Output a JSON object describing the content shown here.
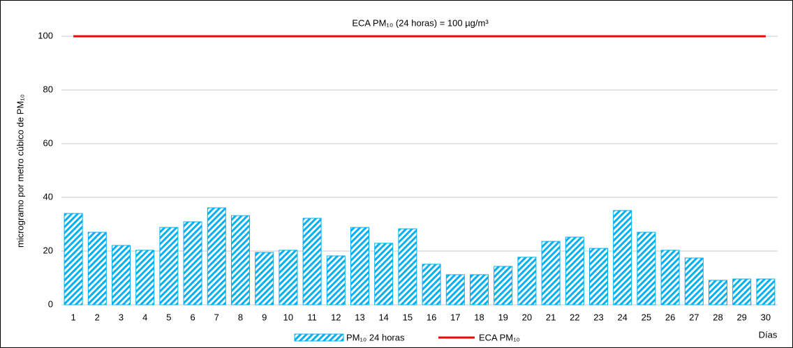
{
  "chart_data": {
    "type": "bar",
    "annotation": "ECA PM₁₀ (24 horas) = 100 µg/m³",
    "y_label": "microgramo por metro cúbico de PM₁₀",
    "x_label": "Días",
    "categories": [
      1,
      2,
      3,
      4,
      5,
      6,
      7,
      8,
      9,
      10,
      11,
      12,
      13,
      14,
      15,
      16,
      17,
      18,
      19,
      20,
      21,
      22,
      23,
      24,
      25,
      26,
      27,
      28,
      29,
      30
    ],
    "series": [
      {
        "name": "PM₁₀ 24 horas",
        "color": "#00b0f0",
        "type": "bar",
        "values": [
          34.0,
          27.0,
          22.1,
          20.3,
          28.8,
          30.9,
          36.1,
          33.2,
          19.5,
          20.3,
          32.2,
          18.2,
          28.8,
          22.9,
          28.3,
          15.1,
          11.2,
          11.2,
          14.3,
          17.7,
          23.6,
          25.2,
          21.0,
          35.1,
          27.0,
          20.3,
          17.4,
          9.1,
          9.6,
          9.6
        ]
      },
      {
        "name": "ECA PM₁₀",
        "color": "#ff0000",
        "type": "line",
        "values": [
          100,
          100,
          100,
          100,
          100,
          100,
          100,
          100,
          100,
          100,
          100,
          100,
          100,
          100,
          100,
          100,
          100,
          100,
          100,
          100,
          100,
          100,
          100,
          100,
          100,
          100,
          100,
          100,
          100,
          100
        ]
      }
    ],
    "ylim": [
      0,
      105
    ],
    "yticks": [
      0,
      20,
      40,
      60,
      80,
      100
    ],
    "grid": true
  }
}
